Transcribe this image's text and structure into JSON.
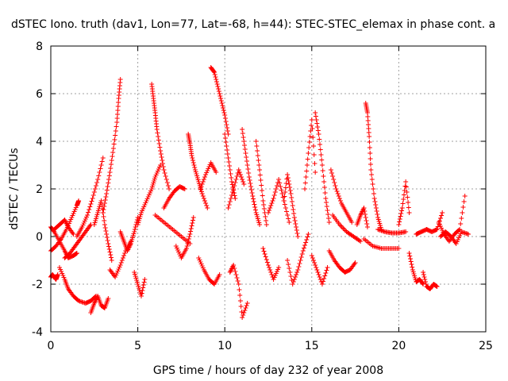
{
  "chart_data": {
    "type": "scatter",
    "title": "dSTEC Iono. truth (dav1, Lon=77, Lat=-68, h=44): STEC-STEC_elemax in phase cont. a",
    "xlabel": "GPS time / hours of day 232 of year 2008",
    "ylabel": "dSTEC  / TECUs",
    "xlim": [
      0,
      25
    ],
    "ylim": [
      -4,
      8
    ],
    "xticks": [
      0,
      5,
      10,
      15,
      20,
      25
    ],
    "yticks": [
      -4,
      -2,
      0,
      2,
      4,
      6,
      8
    ],
    "grid": true,
    "marker": "+",
    "color": "#ff0000",
    "series": [
      {
        "name": "",
        "segments": [
          {
            "x": [
              0.0,
              0.1,
              0.2,
              0.3,
              0.4
            ],
            "y": [
              -1.7,
              -1.6,
              -1.7,
              -1.8,
              -1.6
            ]
          },
          {
            "x": [
              0.0,
              0.2,
              0.5,
              0.8,
              1.0,
              1.3,
              1.5
            ],
            "y": [
              0.4,
              0.2,
              -0.2,
              -0.6,
              -0.9,
              -0.8,
              -0.7
            ]
          },
          {
            "x": [
              0.0,
              0.3,
              0.6,
              0.9,
              1.2,
              1.5,
              1.6
            ],
            "y": [
              -0.6,
              -0.4,
              -0.1,
              0.3,
              0.8,
              1.3,
              1.5
            ]
          },
          {
            "x": [
              0.2,
              0.5,
              0.8,
              1.0,
              1.3
            ],
            "y": [
              0.3,
              0.5,
              0.7,
              0.4,
              0.1
            ]
          },
          {
            "x": [
              0.5,
              0.8,
              1.0,
              1.3,
              1.6,
              2.0,
              2.3,
              2.6
            ],
            "y": [
              -1.3,
              -1.8,
              -2.2,
              -2.5,
              -2.7,
              -2.8,
              -2.7,
              -2.5
            ]
          },
          {
            "x": [
              0.8,
              1.1,
              1.4,
              1.7,
              2.0,
              2.3
            ],
            "y": [
              -0.9,
              -0.7,
              -0.4,
              -0.1,
              0.2,
              0.5
            ]
          },
          {
            "x": [
              1.5,
              1.8,
              2.1,
              2.4,
              2.7,
              3.0
            ],
            "y": [
              0.0,
              0.4,
              0.9,
              1.6,
              2.4,
              3.3
            ]
          },
          {
            "x": [
              2.3,
              2.5,
              2.7,
              2.9,
              3.1,
              3.3
            ],
            "y": [
              -3.2,
              -2.8,
              -2.5,
              -2.9,
              -3.0,
              -2.6
            ]
          },
          {
            "x": [
              2.5,
              2.7,
              2.9,
              3.1,
              3.3,
              3.5
            ],
            "y": [
              0.5,
              1.0,
              1.5,
              0.5,
              -0.3,
              -1.0
            ]
          },
          {
            "x": [
              3.0,
              3.2,
              3.4,
              3.6,
              3.8,
              3.9,
              4.0
            ],
            "y": [
              1.0,
              1.8,
              2.7,
              3.7,
              4.8,
              5.8,
              6.6
            ]
          },
          {
            "x": [
              3.4,
              3.7,
              4.0,
              4.3,
              4.6
            ],
            "y": [
              -1.4,
              -1.7,
              -1.2,
              -0.6,
              -0.2
            ]
          },
          {
            "x": [
              4.0,
              4.2,
              4.4,
              4.6,
              4.8,
              5.0
            ],
            "y": [
              0.2,
              -0.2,
              -0.6,
              -0.3,
              0.2,
              0.8
            ]
          },
          {
            "x": [
              4.8,
              5.0,
              5.2,
              5.4
            ],
            "y": [
              -1.5,
              -2.0,
              -2.5,
              -1.8
            ]
          },
          {
            "x": [
              5.0,
              5.2,
              5.5,
              5.8,
              6.0,
              6.3
            ],
            "y": [
              0.5,
              1.0,
              1.5,
              2.0,
              2.5,
              3.0
            ]
          },
          {
            "x": [
              5.8,
              5.9,
              6.0,
              6.1,
              6.3,
              6.5,
              6.8
            ],
            "y": [
              6.4,
              5.8,
              5.2,
              4.5,
              3.6,
              2.8,
              2.0
            ]
          },
          {
            "x": [
              6.5,
              6.8,
              7.1,
              7.4,
              7.7
            ],
            "y": [
              1.2,
              1.6,
              1.9,
              2.1,
              2.0
            ]
          },
          {
            "x": [
              6.0,
              6.5,
              7.0,
              7.5,
              8.0
            ],
            "y": [
              0.9,
              0.6,
              0.3,
              0.0,
              -0.3
            ]
          },
          {
            "x": [
              7.2,
              7.5,
              7.8,
              8.0,
              8.2
            ],
            "y": [
              -0.4,
              -0.9,
              -0.5,
              0.1,
              0.8
            ]
          },
          {
            "x": [
              7.9,
              8.0,
              8.1,
              8.3,
              8.5,
              8.7,
              9.0
            ],
            "y": [
              4.3,
              3.9,
              3.4,
              2.8,
              2.3,
              1.8,
              1.2
            ]
          },
          {
            "x": [
              8.5,
              8.8,
              9.1,
              9.4,
              9.7
            ],
            "y": [
              -0.9,
              -1.4,
              -1.8,
              -2.0,
              -1.6
            ]
          },
          {
            "x": [
              9.2,
              9.4,
              9.6,
              9.8,
              10.0,
              10.2
            ],
            "y": [
              7.1,
              6.9,
              6.3,
              5.7,
              5.1,
              4.3
            ]
          },
          {
            "x": [
              8.6,
              8.9,
              9.2,
              9.5
            ],
            "y": [
              2.0,
              2.6,
              3.1,
              2.7
            ]
          },
          {
            "x": [
              10.0,
              10.2,
              10.4,
              10.6
            ],
            "y": [
              4.3,
              3.3,
              2.3,
              1.6
            ]
          },
          {
            "x": [
              10.2,
              10.5,
              10.8,
              11.1
            ],
            "y": [
              1.2,
              2.0,
              2.8,
              2.2
            ]
          },
          {
            "x": [
              10.3,
              10.5,
              10.8,
              11.0,
              11.3
            ],
            "y": [
              -1.5,
              -1.2,
              -2.0,
              -3.4,
              -2.8
            ]
          },
          {
            "x": [
              11.0,
              11.2,
              11.4,
              11.6,
              11.8,
              12.0
            ],
            "y": [
              4.5,
              3.5,
              2.5,
              1.7,
              1.0,
              0.5
            ]
          },
          {
            "x": [
              11.8,
              12.0,
              12.2,
              12.4
            ],
            "y": [
              4.0,
              2.8,
              1.5,
              0.5
            ]
          },
          {
            "x": [
              12.2,
              12.5,
              12.8,
              13.1
            ],
            "y": [
              -0.5,
              -1.2,
              -1.8,
              -1.3
            ]
          },
          {
            "x": [
              12.5,
              12.8,
              13.1,
              13.4,
              13.7
            ],
            "y": [
              1.0,
              1.6,
              2.4,
              1.5,
              0.6
            ]
          },
          {
            "x": [
              13.4,
              13.6,
              13.8,
              14.0,
              14.2
            ],
            "y": [
              1.5,
              2.6,
              1.8,
              0.8,
              0.0
            ]
          },
          {
            "x": [
              13.6,
              13.9,
              14.2,
              14.5,
              14.8
            ],
            "y": [
              -1.0,
              -2.0,
              -1.4,
              -0.6,
              0.1
            ]
          },
          {
            "x": [
              14.6,
              14.8,
              15.0,
              15.2
            ],
            "y": [
              2.0,
              3.5,
              4.9,
              2.7
            ]
          },
          {
            "x": [
              15.2,
              15.4,
              15.6,
              15.8,
              16.0
            ],
            "y": [
              5.2,
              4.3,
              3.0,
              1.6,
              0.6
            ]
          },
          {
            "x": [
              15.0,
              15.3,
              15.6,
              15.9
            ],
            "y": [
              -0.8,
              -1.4,
              -2.0,
              -1.3
            ]
          },
          {
            "x": [
              16.0,
              16.3,
              16.6,
              16.9,
              17.2,
              17.5
            ],
            "y": [
              -0.6,
              -1.0,
              -1.3,
              -1.5,
              -1.4,
              -1.1
            ]
          },
          {
            "x": [
              16.1,
              16.4,
              16.7,
              17.0,
              17.3
            ],
            "y": [
              2.8,
              2.0,
              1.4,
              1.0,
              0.6
            ]
          },
          {
            "x": [
              16.2,
              16.6,
              17.0,
              17.4,
              17.8
            ],
            "y": [
              0.9,
              0.5,
              0.2,
              0.0,
              -0.2
            ]
          },
          {
            "x": [
              17.6,
              17.8,
              18.0,
              18.2
            ],
            "y": [
              0.5,
              0.9,
              1.2,
              0.4
            ]
          },
          {
            "x": [
              18.0,
              18.5,
              19.0,
              19.5,
              20.0
            ],
            "y": [
              -0.1,
              -0.4,
              -0.5,
              -0.5,
              -0.5
            ]
          },
          {
            "x": [
              18.1,
              18.2,
              18.3,
              18.4,
              18.6,
              18.8,
              19.0
            ],
            "y": [
              5.6,
              5.2,
              4.2,
              2.8,
              1.6,
              0.8,
              0.3
            ]
          },
          {
            "x": [
              18.8,
              19.2,
              19.6,
              20.0,
              20.4
            ],
            "y": [
              0.3,
              0.2,
              0.15,
              0.15,
              0.2
            ]
          },
          {
            "x": [
              20.0,
              20.2,
              20.4,
              20.6
            ],
            "y": [
              0.5,
              1.2,
              2.3,
              1.0
            ]
          },
          {
            "x": [
              20.6,
              20.8,
              21.0,
              21.2,
              21.4
            ],
            "y": [
              -0.7,
              -1.4,
              -1.9,
              -1.8,
              -2.0
            ]
          },
          {
            "x": [
              21.4,
              21.6,
              21.8,
              22.0,
              22.2
            ],
            "y": [
              -1.5,
              -2.1,
              -2.2,
              -2.0,
              -2.1
            ]
          },
          {
            "x": [
              21.0,
              21.3,
              21.6,
              21.9,
              22.2,
              22.5
            ],
            "y": [
              0.1,
              0.2,
              0.3,
              0.2,
              0.3,
              1.0
            ]
          },
          {
            "x": [
              22.3,
              22.6,
              22.9,
              23.2,
              23.5,
              23.8
            ],
            "y": [
              0.6,
              0.1,
              -0.2,
              0.1,
              0.3,
              1.7
            ]
          },
          {
            "x": [
              22.4,
              22.7,
              23.0,
              23.3,
              23.6,
              24.0
            ],
            "y": [
              0.0,
              0.2,
              0.0,
              -0.3,
              0.2,
              0.1
            ]
          }
        ]
      }
    ]
  }
}
